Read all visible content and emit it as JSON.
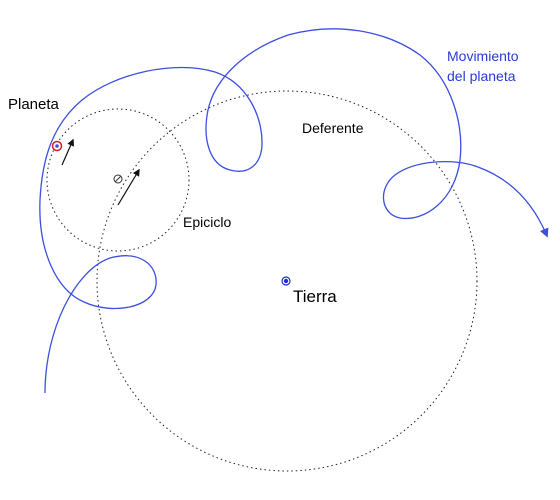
{
  "labels": {
    "planet": "Planeta",
    "deferent": "Deferente",
    "epicycle": "Epiciclo",
    "earth": "Tierra",
    "motion_line1": "Movimiento",
    "motion_line2": "del planeta"
  },
  "colors": {
    "trajectory": "#3c4fe0",
    "text_blue": "#2a3ad6",
    "dotted": "#222222",
    "earth_fill": "#2030c0",
    "planet_ring": "#d02020",
    "arrow": "#111111"
  }
}
